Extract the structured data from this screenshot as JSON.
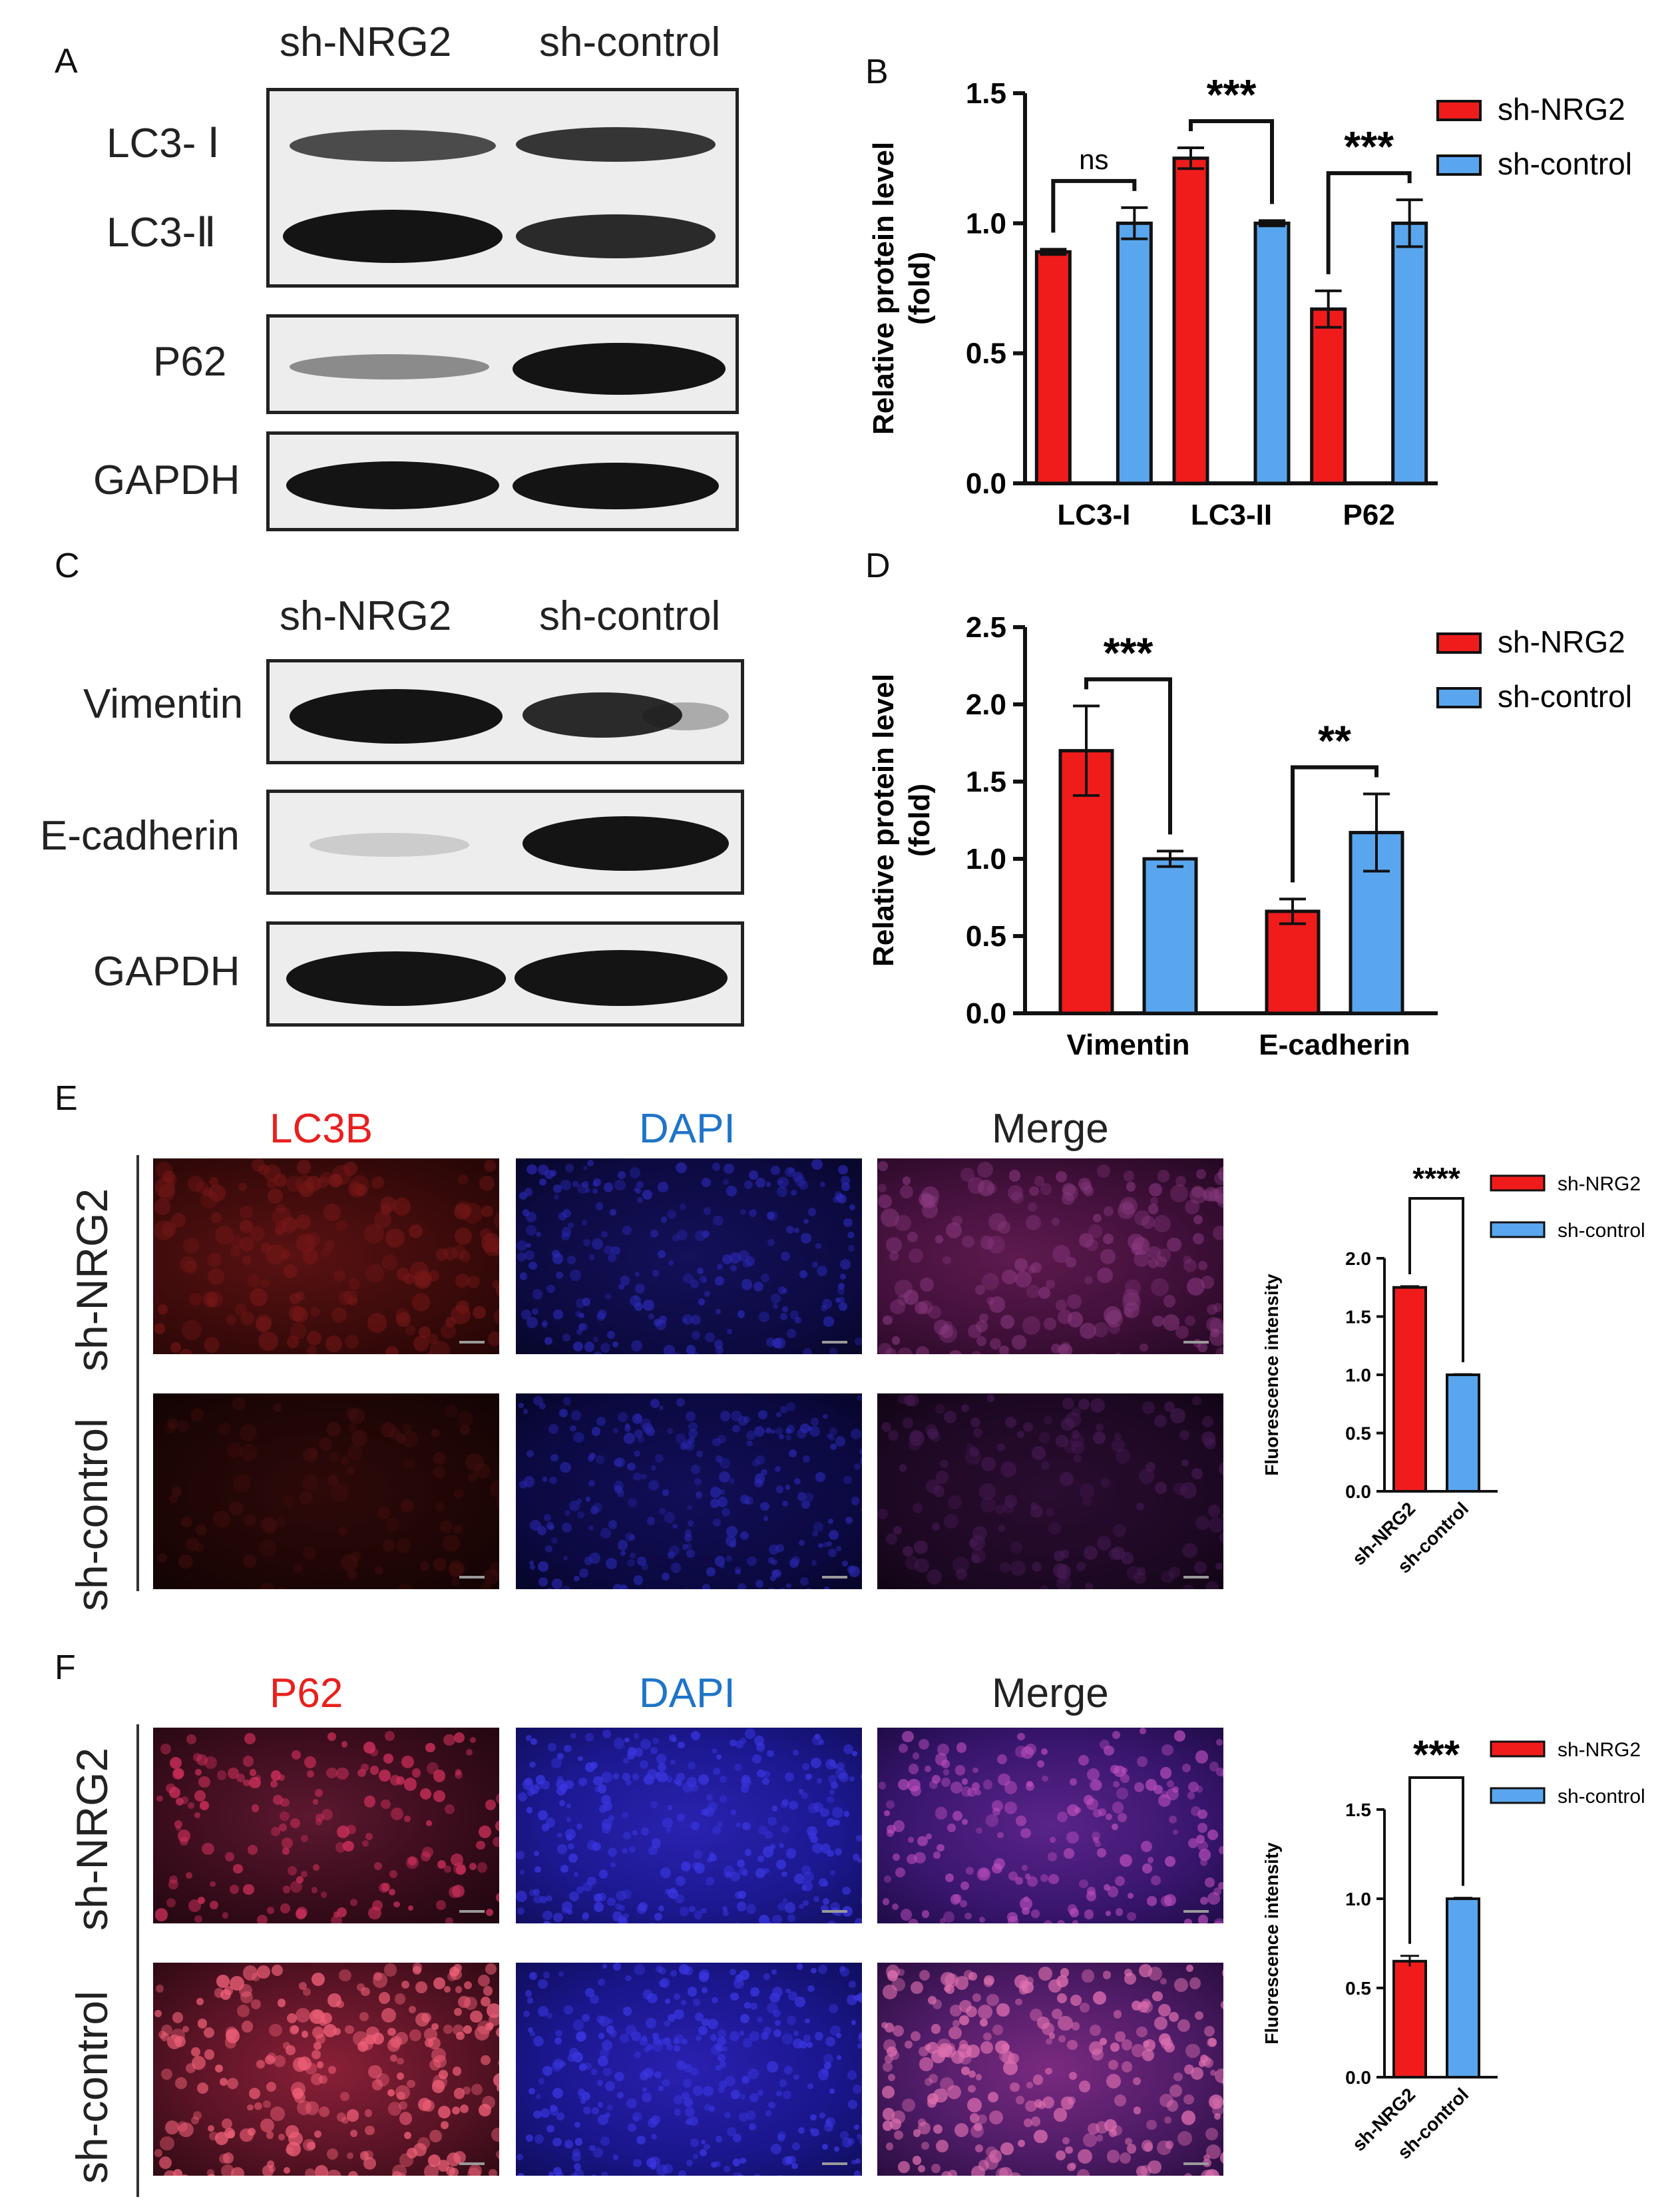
{
  "panels": {
    "A": {
      "letter": "A",
      "groups": [
        "sh-NRG2",
        "sh-control"
      ],
      "proteins": [
        "LC3- Ⅰ",
        "LC3-Ⅱ",
        "P62",
        "GAPDH"
      ]
    },
    "C": {
      "letter": "C",
      "groups": [
        "sh-NRG2",
        "sh-control"
      ],
      "proteins": [
        "Vimentin",
        "E-cadherin",
        "GAPDH"
      ]
    },
    "E": {
      "letter": "E",
      "channels": [
        "LC3B",
        "DAPI",
        "Merge"
      ],
      "rows": [
        "sh-NRG2",
        "sh-control"
      ],
      "channel_colors": [
        "#e8201e",
        "#1f74c9",
        "#222222"
      ]
    },
    "F": {
      "letter": "F",
      "channels": [
        "P62",
        "DAPI",
        "Merge"
      ],
      "rows": [
        "sh-NRG2",
        "sh-control"
      ],
      "channel_colors": [
        "#e8201e",
        "#1f74c9",
        "#222222"
      ]
    }
  },
  "colors": {
    "sh_NRG2": "#f01c1c",
    "sh_control": "#5aa6ee"
  },
  "chart_data": [
    {
      "panel": "B",
      "type": "bar",
      "ylabel": "Relative protein level\n(fold)",
      "ylim": [
        0,
        1.5
      ],
      "yticks": [
        "0.0",
        "0.5",
        "1.0",
        "1.5"
      ],
      "categories": [
        "LC3-I",
        "LC3-II",
        "P62"
      ],
      "series": [
        {
          "name": "sh-NRG2",
          "values": [
            0.89,
            1.25,
            0.67
          ],
          "errors": [
            0.01,
            0.04,
            0.07
          ]
        },
        {
          "name": "sh-control",
          "values": [
            1.0,
            1.0,
            1.0
          ],
          "errors": [
            0.06,
            0.01,
            0.09
          ]
        }
      ],
      "significance": [
        "ns",
        "***",
        "***"
      ],
      "legend": [
        "sh-NRG2",
        "sh-control"
      ],
      "legend_position": "right"
    },
    {
      "panel": "D",
      "type": "bar",
      "ylabel": "Relative protein level\n(fold)",
      "ylim": [
        0,
        2.5
      ],
      "yticks": [
        "0.0",
        "0.5",
        "1.0",
        "1.5",
        "2.0",
        "2.5"
      ],
      "categories": [
        "Vimentin",
        "E-cadherin"
      ],
      "series": [
        {
          "name": "sh-NRG2",
          "values": [
            1.7,
            0.66
          ],
          "errors": [
            0.29,
            0.08
          ]
        },
        {
          "name": "sh-control",
          "values": [
            1.0,
            1.17
          ],
          "errors": [
            0.05,
            0.25
          ]
        }
      ],
      "significance": [
        "***",
        "**"
      ],
      "legend": [
        "sh-NRG2",
        "sh-control"
      ],
      "legend_position": "right"
    },
    {
      "panel": "E-chart",
      "type": "bar",
      "ylabel": "Fluorescence intensity",
      "ylim": [
        0,
        2.0
      ],
      "yticks": [
        "0.0",
        "0.5",
        "1.0",
        "1.5",
        "2.0"
      ],
      "categories": [
        "sh-NRG2",
        "sh-control"
      ],
      "values": [
        1.75,
        1.0
      ],
      "errors": [
        0.01,
        0.005
      ],
      "significance": [
        "****"
      ],
      "legend": [
        "sh-NRG2",
        "sh-control"
      ],
      "legend_position": "top-right"
    },
    {
      "panel": "F-chart",
      "type": "bar",
      "ylabel": "Fluorescence intensity",
      "ylim": [
        0,
        1.5
      ],
      "yticks": [
        "0.0",
        "0.5",
        "1.0",
        "1.5"
      ],
      "categories": [
        "sh-NRG2",
        "sh-control"
      ],
      "values": [
        0.65,
        1.0
      ],
      "errors": [
        0.03,
        0.005
      ],
      "significance": [
        "***"
      ],
      "legend": [
        "sh-NRG2",
        "sh-control"
      ],
      "legend_position": "top-right"
    }
  ]
}
